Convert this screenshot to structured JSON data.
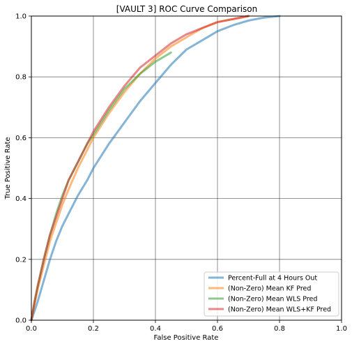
{
  "chart_data": {
    "type": "line",
    "title": "[VAULT 3] ROC Curve Comparison",
    "xlabel": "False Positive Rate",
    "ylabel": "True Positive Rate",
    "xlim": [
      0.0,
      1.0
    ],
    "ylim": [
      0.0,
      1.0
    ],
    "xticks": [
      "0.0",
      "0.2",
      "0.4",
      "0.6",
      "0.8",
      "1.0"
    ],
    "yticks": [
      "0.0",
      "0.2",
      "0.4",
      "0.6",
      "0.8",
      "1.0"
    ],
    "grid": true,
    "legend_position": "lower-right",
    "series": [
      {
        "name": "Percent-Full at 4 Hours Out",
        "color": "#1f77b4",
        "x": [
          0.0,
          0.01,
          0.02,
          0.04,
          0.06,
          0.08,
          0.1,
          0.12,
          0.15,
          0.18,
          0.2,
          0.25,
          0.3,
          0.35,
          0.4,
          0.45,
          0.5,
          0.55,
          0.6,
          0.65,
          0.7,
          0.75,
          0.8
        ],
        "y": [
          0.0,
          0.03,
          0.06,
          0.13,
          0.2,
          0.26,
          0.31,
          0.35,
          0.41,
          0.46,
          0.5,
          0.58,
          0.65,
          0.72,
          0.78,
          0.84,
          0.89,
          0.92,
          0.95,
          0.97,
          0.985,
          0.995,
          1.0
        ]
      },
      {
        "name": "(Non-Zero) Mean KF Pred",
        "color": "#ff7f0e",
        "x": [
          0.0,
          0.01,
          0.02,
          0.04,
          0.06,
          0.08,
          0.1,
          0.12,
          0.15,
          0.18,
          0.2,
          0.25,
          0.3,
          0.35,
          0.4,
          0.45,
          0.5,
          0.55,
          0.6,
          0.65,
          0.7
        ],
        "y": [
          0.0,
          0.05,
          0.1,
          0.18,
          0.26,
          0.32,
          0.38,
          0.43,
          0.5,
          0.56,
          0.6,
          0.68,
          0.75,
          0.81,
          0.86,
          0.9,
          0.93,
          0.96,
          0.98,
          0.99,
          1.0
        ]
      },
      {
        "name": "(Non-Zero) Mean WLS Pred",
        "color": "#2ca02c",
        "x": [
          0.0,
          0.01,
          0.02,
          0.04,
          0.06,
          0.08,
          0.1,
          0.12,
          0.15,
          0.18,
          0.2,
          0.25,
          0.3,
          0.35,
          0.4,
          0.45
        ],
        "y": [
          0.0,
          0.06,
          0.11,
          0.2,
          0.28,
          0.35,
          0.41,
          0.46,
          0.52,
          0.58,
          0.61,
          0.69,
          0.76,
          0.81,
          0.85,
          0.88
        ]
      },
      {
        "name": "(Non-Zero) Mean WLS+KF Pred",
        "color": "#d62728",
        "x": [
          0.0,
          0.01,
          0.02,
          0.04,
          0.06,
          0.08,
          0.1,
          0.12,
          0.15,
          0.18,
          0.2,
          0.25,
          0.3,
          0.35,
          0.4,
          0.45,
          0.5,
          0.55,
          0.6,
          0.65,
          0.7
        ],
        "y": [
          0.0,
          0.06,
          0.11,
          0.2,
          0.28,
          0.34,
          0.4,
          0.46,
          0.52,
          0.58,
          0.62,
          0.7,
          0.77,
          0.83,
          0.87,
          0.91,
          0.94,
          0.96,
          0.98,
          0.99,
          1.0
        ]
      }
    ]
  }
}
